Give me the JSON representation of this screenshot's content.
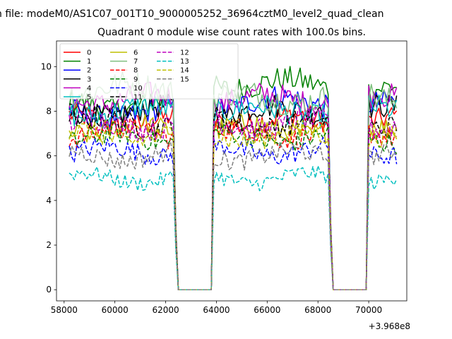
{
  "chart_data": {
    "type": "line",
    "suptitle": "n file: modeM0/AS1C07_001T10_9000005252_36964cztM0_level2_quad_clean",
    "title": "Quadrant 0 module wise count rates with 100.0s bins.",
    "x_offset_label": "+3.968e8",
    "xlim": [
      57700,
      71500
    ],
    "ylim": [
      -0.5,
      11.15
    ],
    "x_ticks": [
      58000,
      60000,
      62000,
      64000,
      66000,
      68000,
      70000
    ],
    "x_tick_labels": [
      "58000",
      "60000",
      "62000",
      "64000",
      "66000",
      "68000",
      "70000"
    ],
    "y_ticks": [
      0,
      2,
      4,
      6,
      8,
      10
    ],
    "y_tick_labels": [
      "0",
      "2",
      "4",
      "6",
      "8",
      "10"
    ],
    "legend": {
      "placement": "top-left",
      "columns": 4
    },
    "segments": [
      {
        "start": 58200,
        "end": 62400
      },
      {
        "start": 63900,
        "end": 68500
      },
      {
        "start": 70000,
        "end": 71100
      }
    ],
    "gaps": [
      {
        "start": 62500,
        "end": 63800
      },
      {
        "start": 68600,
        "end": 69900
      }
    ],
    "series": [
      {
        "name": "0",
        "color": "#ff0000",
        "dash": "solid",
        "mean": 7.6
      },
      {
        "name": "1",
        "color": "#008000",
        "dash": "solid",
        "mean": 8.3,
        "trend": [
          0,
          0.9,
          0.6
        ]
      },
      {
        "name": "2",
        "color": "#0000ff",
        "dash": "solid",
        "mean": 7.9,
        "trend": [
          0,
          0.5,
          0.3
        ]
      },
      {
        "name": "3",
        "color": "#000000",
        "dash": "solid",
        "mean": 8.0
      },
      {
        "name": "4",
        "color": "#bf00bf",
        "dash": "solid",
        "mean": 8.5
      },
      {
        "name": "5",
        "color": "#00bfbf",
        "dash": "solid",
        "mean": 8.0
      },
      {
        "name": "6",
        "color": "#bfbf00",
        "dash": "solid",
        "mean": 7.2
      },
      {
        "name": "7",
        "color": "#7fbf7f",
        "dash": "solid",
        "mean": 8.6,
        "trend": [
          0.4,
          0,
          0
        ]
      },
      {
        "name": "8",
        "color": "#ff0000",
        "dash": "dashed",
        "mean": 7.0
      },
      {
        "name": "9",
        "color": "#008000",
        "dash": "dashed",
        "mean": 6.8
      },
      {
        "name": "10",
        "color": "#0000ff",
        "dash": "dashed",
        "mean": 6.2
      },
      {
        "name": "11",
        "color": "#000000",
        "dash": "dashed",
        "mean": 7.5
      },
      {
        "name": "12",
        "color": "#bf00bf",
        "dash": "dashed",
        "mean": 7.4
      },
      {
        "name": "13",
        "color": "#00bfbf",
        "dash": "dashed",
        "mean": 5.0
      },
      {
        "name": "14",
        "color": "#bfbf00",
        "dash": "dashed",
        "mean": 6.9
      },
      {
        "name": "15",
        "color": "#7f7f7f",
        "dash": "dashed",
        "mean": 6.0
      }
    ]
  }
}
